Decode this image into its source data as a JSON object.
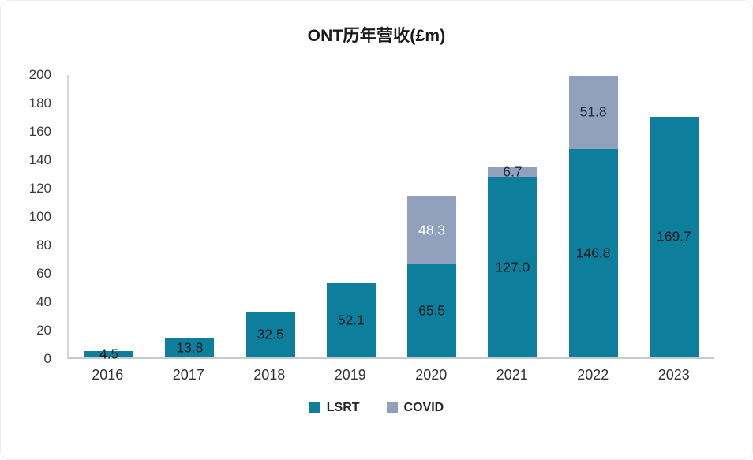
{
  "chart_data": {
    "type": "bar",
    "stacked": true,
    "title": "ONT历年营收(£m)",
    "categories": [
      "2016",
      "2017",
      "2018",
      "2019",
      "2020",
      "2021",
      "2022",
      "2023"
    ],
    "series": [
      {
        "name": "LSRT",
        "color": "#0d7f9c",
        "values": [
          4.5,
          13.8,
          32.5,
          52.1,
          65.5,
          127.0,
          146.8,
          169.7
        ],
        "labels": [
          "4.5",
          "13.8",
          "32.5",
          "52.1",
          "65.5",
          "127.0",
          "146.8",
          "169.7"
        ],
        "label_colors": [
          "#1a1a1a",
          "#1a1a1a",
          "#1a1a1a",
          "#1a1a1a",
          "#1a1a1a",
          "#1a1a1a",
          "#1a1a1a",
          "#1a1a1a"
        ]
      },
      {
        "name": "COVID",
        "color": "#91a0bd",
        "values": [
          0,
          0,
          0,
          0,
          48.3,
          6.7,
          51.8,
          0
        ],
        "labels": [
          "",
          "",
          "",
          "",
          "48.3",
          "6.7",
          "51.8",
          ""
        ],
        "label_colors": [
          "",
          "",
          "",
          "",
          "#ffffff",
          "#1f2937",
          "#1f2937",
          ""
        ]
      }
    ],
    "ylim": [
      0,
      200
    ],
    "y_tick_step": 20,
    "y_ticks": [
      "0",
      "20",
      "40",
      "60",
      "80",
      "100",
      "120",
      "140",
      "160",
      "180",
      "200"
    ],
    "grid": false,
    "legend_position": "bottom"
  }
}
